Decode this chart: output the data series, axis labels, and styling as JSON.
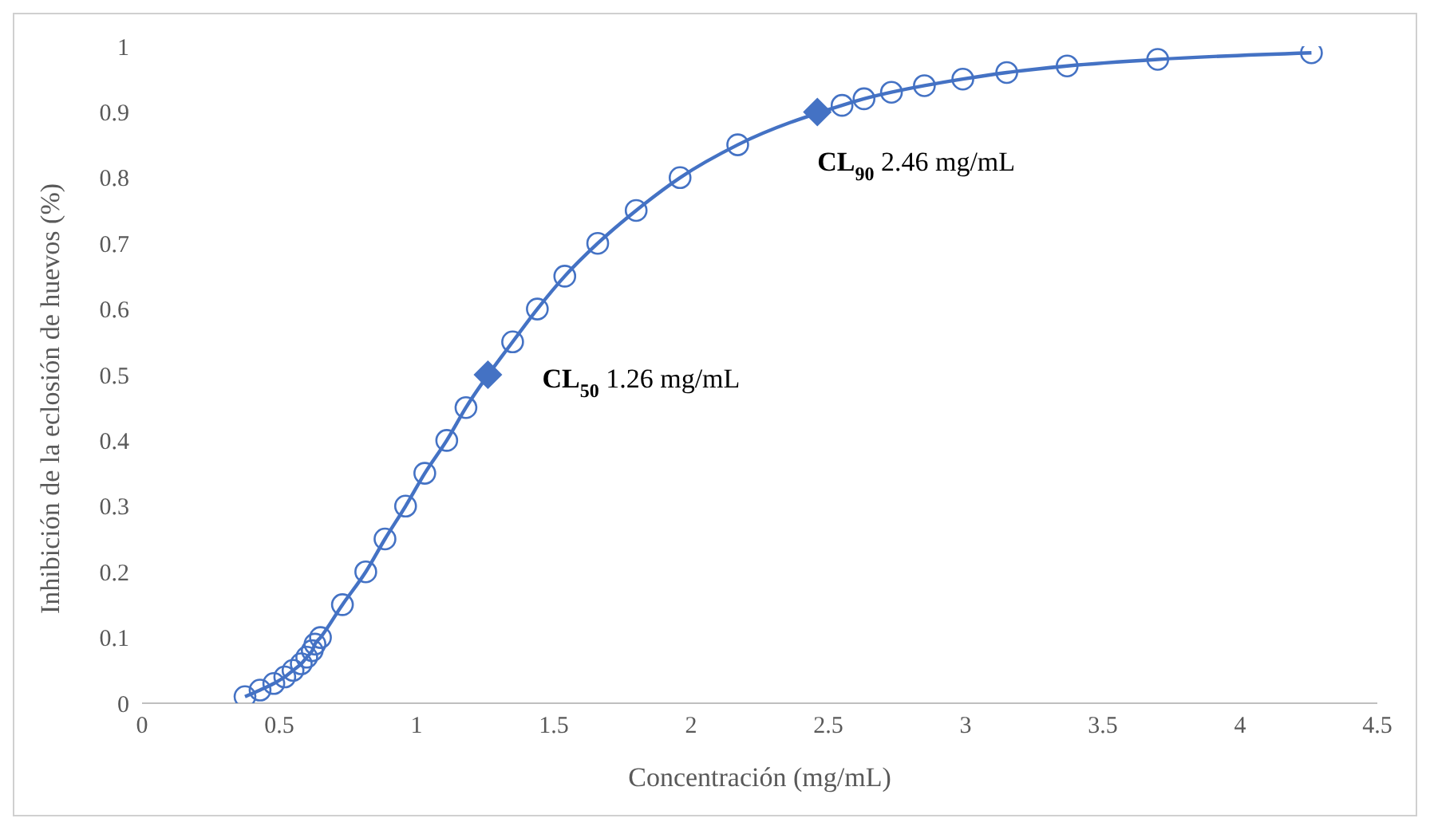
{
  "chart_data": {
    "type": "line",
    "xlabel": "Concentración (mg/mL)",
    "ylabel": "Inhibición de la eclosión de huevos (%)",
    "xlim": [
      0,
      4.5
    ],
    "xticks": [
      0,
      0.5,
      1,
      1.5,
      2,
      2.5,
      3,
      3.5,
      4,
      4.5
    ],
    "ylim": [
      0,
      1
    ],
    "yticks": [
      0,
      0.1,
      0.2,
      0.3,
      0.4,
      0.5,
      0.6,
      0.7,
      0.8,
      0.9,
      1
    ],
    "grid": false,
    "legend": false,
    "marker": "circle",
    "line_style": "solid",
    "series": [
      {
        "color": "#4472c4",
        "x": [
          0.375,
          0.43,
          0.48,
          0.52,
          0.55,
          0.58,
          0.6,
          0.62,
          0.63,
          0.65,
          0.73,
          0.815,
          0.885,
          0.96,
          1.03,
          1.11,
          1.18,
          1.35,
          1.44,
          1.54,
          1.66,
          1.8,
          1.96,
          2.17,
          2.55,
          2.63,
          2.73,
          2.85,
          2.99,
          3.15,
          3.37,
          3.7,
          4.26
        ],
        "values": [
          0.01,
          0.02,
          0.03,
          0.04,
          0.05,
          0.06,
          0.07,
          0.08,
          0.09,
          0.1,
          0.15,
          0.2,
          0.25,
          0.3,
          0.35,
          0.4,
          0.45,
          0.55,
          0.6,
          0.65,
          0.7,
          0.75,
          0.8,
          0.85,
          0.91,
          0.92,
          0.93,
          0.94,
          0.95,
          0.96,
          0.97,
          0.98,
          0.99
        ]
      },
      {
        "type": "scatter",
        "color": "#4472c4",
        "marker": "diamond",
        "x": [
          1.26,
          2.46
        ],
        "values": [
          0.5,
          0.9
        ]
      }
    ],
    "annotations": [
      {
        "text": "CL$_{50}$ 1.26 mg/mL",
        "x": 1.26,
        "y": 0.5
      },
      {
        "text": "CL$_{90}$ 2.46 mg/mL",
        "x": 2.46,
        "y": 0.9
      }
    ]
  }
}
